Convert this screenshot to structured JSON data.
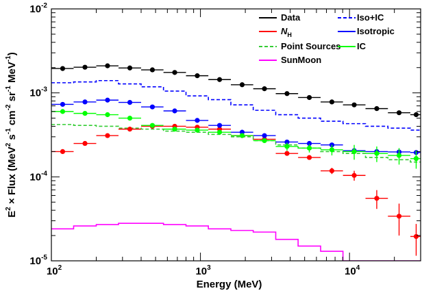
{
  "chart_data": {
    "type": "scatter",
    "title": "",
    "xlabel": "Energy (MeV)",
    "ylabel": {
      "prefix": "E",
      "sup1": "2",
      "mid1": " × Flux (MeV",
      "sup2": "2",
      "mid2": " s",
      "sup3": "-1",
      "mid3": " cm",
      "sup4": "-2",
      "mid4": " sr",
      "sup5": "-1",
      "mid5": " MeV",
      "sup6": "-1",
      "suffix": ")"
    },
    "xscale": "log",
    "yscale": "log",
    "xlim": [
      100,
      30000
    ],
    "ylim": [
      1e-05,
      0.01
    ],
    "x_ticks": [
      {
        "value": 100,
        "base": "10",
        "exp": "2"
      },
      {
        "value": 1000,
        "base": "10",
        "exp": "3"
      },
      {
        "value": 10000,
        "base": "10",
        "exp": "4"
      }
    ],
    "y_ticks": [
      {
        "value": 1e-05,
        "base": "10",
        "exp": "-5"
      },
      {
        "value": 0.0001,
        "base": "10",
        "exp": "-4"
      },
      {
        "value": 0.001,
        "base": "10",
        "exp": "-3"
      },
      {
        "value": 0.01,
        "base": "10",
        "exp": "-2"
      }
    ],
    "grid": false,
    "legend_position": "top-right",
    "legend": [
      {
        "label": "Data",
        "color": "#000000",
        "style": "solid"
      },
      {
        "label": "Iso+IC",
        "color": "#0000ff",
        "style": "dashed"
      },
      {
        "label": "N",
        "sub": "H",
        "italic": true,
        "color": "#ff0000",
        "style": "solid"
      },
      {
        "label": "Isotropic",
        "color": "#0000ff",
        "style": "solid"
      },
      {
        "label": "Point Sources",
        "color": "#33cc33",
        "style": "dashed"
      },
      {
        "label": "IC",
        "color": "#00ff00",
        "style": "solid"
      },
      {
        "label": "SunMoon",
        "color": "#ff00ff",
        "style": "solid"
      }
    ],
    "bin_edges": [
      100,
      141,
      200,
      282,
      400,
      565,
      800,
      1130,
      1600,
      2260,
      3200,
      4520,
      6400,
      9040,
      12800,
      18100,
      25600,
      30000
    ],
    "point_series": [
      {
        "name": "Data",
        "color": "#000000",
        "x": [
          119,
          168,
          238,
          336,
          476,
          672,
          952,
          1344,
          1904,
          2688,
          3808,
          5376,
          7616,
          10752,
          15232,
          21504,
          28000
        ],
        "y": [
          0.00195,
          0.00202,
          0.0021,
          0.00198,
          0.00188,
          0.00175,
          0.0016,
          0.00144,
          0.00125,
          0.00112,
          0.00098,
          0.00088,
          0.00078,
          0.00072,
          0.00065,
          0.00058,
          0.00055
        ],
        "yerr": [
          0,
          0,
          0,
          0,
          0,
          0,
          0,
          0,
          0,
          0,
          0,
          0,
          0,
          0,
          0,
          0,
          0
        ]
      },
      {
        "name": "N_H",
        "color": "#ff0000",
        "x": [
          119,
          168,
          238,
          336,
          476,
          672,
          952,
          1344,
          1904,
          2688,
          3808,
          5376,
          7616,
          10752,
          15232,
          21504,
          28000
        ],
        "y": [
          0.0002,
          0.00025,
          0.00031,
          0.00037,
          0.0004,
          0.0004,
          0.00039,
          0.00037,
          0.00031,
          0.00028,
          0.00019,
          0.00017,
          0.000118,
          0.000104,
          5.55e-05,
          3.4e-05,
          1.95e-05
        ],
        "yerr": [
          0,
          0,
          0,
          0,
          0,
          0,
          0,
          0,
          0,
          0,
          0,
          0,
          1e-05,
          1.4e-05,
          1.4e-05,
          1.4e-05,
          8e-06
        ]
      },
      {
        "name": "Isotropic",
        "color": "#0000ff",
        "x": [
          119,
          168,
          238,
          336,
          476,
          672,
          952,
          1344,
          1904,
          2688,
          3808,
          5376,
          7616,
          10752,
          15232,
          21504,
          28000
        ],
        "y": [
          0.00073,
          0.00078,
          0.00082,
          0.00077,
          0.00068,
          0.00061,
          0.00047,
          0.00041,
          0.00034,
          0.00031,
          0.00026,
          0.00025,
          0.00024,
          0.000205,
          0.0002,
          0.000198,
          0.000195
        ],
        "yerr": [
          0,
          0,
          0,
          0,
          0,
          0,
          0,
          0,
          0,
          0,
          0,
          0,
          0,
          0,
          0,
          0,
          0
        ]
      },
      {
        "name": "IC",
        "color": "#00ff00",
        "x": [
          119,
          168,
          238,
          336,
          476,
          672,
          952,
          1344,
          1904,
          2688,
          3808,
          5376,
          7616,
          10752,
          15232,
          21504,
          28000
        ],
        "y": [
          0.0006,
          0.00057,
          0.00055,
          0.0005,
          0.00041,
          0.00037,
          0.00036,
          0.00034,
          0.00031,
          0.00027,
          0.00023,
          0.00022,
          0.00021,
          0.0002,
          0.00019,
          0.00018,
          0.000165
        ],
        "yerr": [
          0,
          0,
          0,
          0,
          0,
          0,
          0,
          0,
          0,
          0,
          2.5e-05,
          2.5e-05,
          3e-05,
          4e-05,
          4e-05,
          4e-05,
          4e-05
        ]
      }
    ],
    "step_series": [
      {
        "name": "Iso+IC",
        "color": "#0000ff",
        "dash": true,
        "y": [
          0.00132,
          0.00135,
          0.0014,
          0.00128,
          0.00118,
          0.00105,
          0.00092,
          0.00083,
          0.00072,
          0.00062,
          0.00055,
          0.0005,
          0.00046,
          0.00043,
          0.0004,
          0.00038,
          0.00036
        ]
      },
      {
        "name": "Point Sources",
        "color": "#33cc33",
        "dash": true,
        "y": [
          0.00042,
          0.00041,
          0.0004,
          0.00038,
          0.00037,
          0.00035,
          0.00034,
          0.00032,
          0.0003,
          0.00027,
          0.00024,
          0.00022,
          0.0002,
          0.00019,
          0.00017,
          0.00016,
          0.00015
        ]
      },
      {
        "name": "SunMoon",
        "color": "#ff00ff",
        "dash": false,
        "y": [
          2.4e-05,
          2.6e-05,
          2.7e-05,
          2.8e-05,
          2.8e-05,
          2.7e-05,
          2.6e-05,
          2.4e-05,
          2.3e-05,
          2.2e-05,
          1.8e-05,
          1.5e-05,
          1.3e-05,
          1e-05,
          1e-05,
          1e-05,
          1e-05
        ]
      }
    ]
  }
}
